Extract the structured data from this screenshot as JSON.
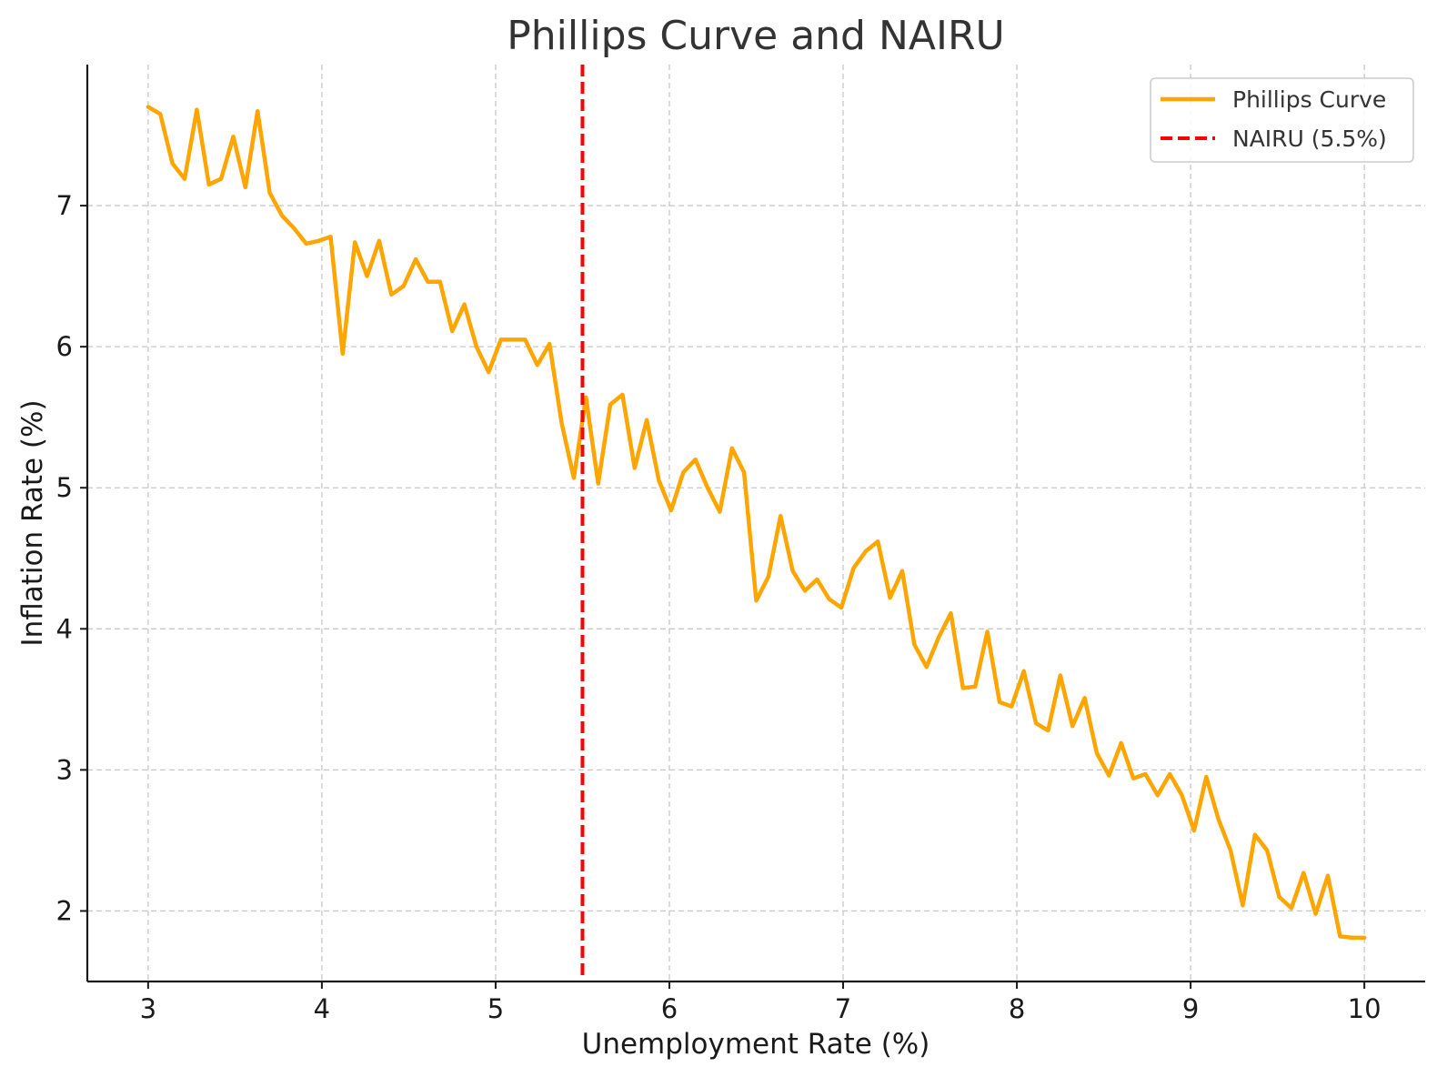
{
  "chart_data": {
    "type": "line",
    "title": "Phillips Curve and NAIRU",
    "xlabel": "Unemployment Rate (%)",
    "ylabel": "Inflation Rate (%)",
    "xlim": [
      2.65,
      10.35
    ],
    "ylim": [
      1.5,
      8.0
    ],
    "xticks": [
      3,
      4,
      5,
      6,
      7,
      8,
      9,
      10
    ],
    "yticks": [
      2,
      3,
      4,
      5,
      6,
      7
    ],
    "grid": true,
    "legend_position": "top-right",
    "series": [
      {
        "name": "Phillips Curve",
        "color": "#FFA500",
        "style": "solid",
        "x": [
          3.0,
          3.07,
          3.14,
          3.21,
          3.28,
          3.35,
          3.42,
          3.49,
          3.56,
          3.63,
          3.7,
          3.77,
          3.84,
          3.91,
          3.98,
          4.05,
          4.12,
          4.19,
          4.26,
          4.33,
          4.4,
          4.47,
          4.54,
          4.61,
          4.68,
          4.75,
          4.82,
          4.89,
          4.96,
          5.03,
          5.1,
          5.17,
          5.24,
          5.31,
          5.38,
          5.45,
          5.52,
          5.59,
          5.66,
          5.73,
          5.8,
          5.87,
          5.94,
          6.01,
          6.08,
          6.15,
          6.22,
          6.29,
          6.36,
          6.43,
          6.5,
          6.57,
          6.64,
          6.71,
          6.78,
          6.85,
          6.92,
          6.99,
          7.06,
          7.13,
          7.2,
          7.27,
          7.34,
          7.41,
          7.48,
          7.55,
          7.62,
          7.69,
          7.76,
          7.83,
          7.9,
          7.97,
          8.04,
          8.11,
          8.18,
          8.25,
          8.32,
          8.39,
          8.46,
          8.53,
          8.6,
          8.67,
          8.74,
          8.81,
          8.88,
          8.95,
          9.02,
          9.09,
          9.16,
          9.23,
          9.3,
          9.37,
          9.44,
          9.51,
          9.58,
          9.65,
          9.72,
          9.79,
          9.86,
          9.93,
          10.0
        ],
        "y": [
          7.7,
          7.65,
          7.3,
          7.19,
          7.68,
          7.15,
          7.19,
          7.49,
          7.13,
          7.67,
          7.09,
          6.93,
          6.84,
          6.73,
          6.75,
          6.78,
          5.95,
          6.74,
          6.5,
          6.75,
          6.37,
          6.43,
          6.62,
          6.46,
          6.46,
          6.11,
          6.3,
          6.0,
          5.82,
          6.05,
          6.05,
          6.05,
          5.87,
          6.02,
          5.46,
          5.07,
          5.64,
          5.03,
          5.59,
          5.66,
          5.14,
          5.48,
          5.05,
          4.84,
          5.11,
          5.2,
          5.0,
          4.83,
          5.28,
          5.11,
          4.2,
          4.37,
          4.8,
          4.41,
          4.27,
          4.35,
          4.21,
          4.15,
          4.43,
          4.55,
          4.62,
          4.22,
          4.41,
          3.89,
          3.73,
          3.94,
          4.11,
          3.58,
          3.59,
          3.98,
          3.48,
          3.45,
          3.7,
          3.33,
          3.28,
          3.67,
          3.31,
          3.51,
          3.12,
          2.96,
          3.19,
          2.94,
          2.97,
          2.82,
          2.97,
          2.82,
          2.57,
          2.95,
          2.65,
          2.43,
          2.04,
          2.54,
          2.43,
          2.1,
          2.02,
          2.27,
          1.98,
          2.25,
          1.82,
          1.81,
          1.81
        ]
      },
      {
        "name": "NAIRU (5.5%)",
        "color": "#FF0000",
        "style": "dashed",
        "x_value": 5.5
      }
    ]
  }
}
